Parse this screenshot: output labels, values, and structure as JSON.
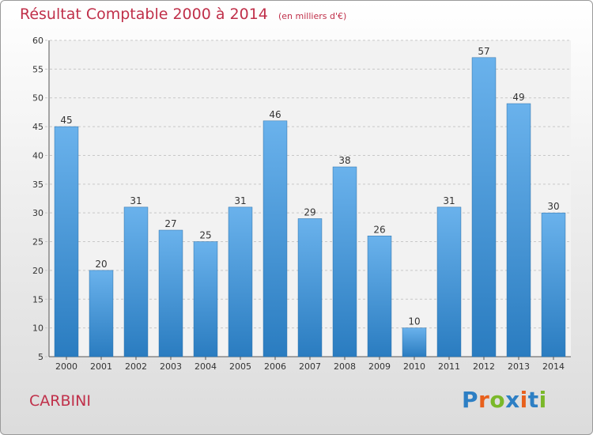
{
  "title": "Résultat Comptable 2000 à 2014",
  "subtitle": "(en milliers d'€)",
  "commune": "CARBINI",
  "logo": {
    "letters": [
      "P",
      "r",
      "o",
      "x",
      "i",
      "t",
      "i"
    ],
    "colors": [
      "#2d7fc4",
      "#e8601c",
      "#7ab829",
      "#2d7fc4",
      "#e8601c",
      "#2d7fc4",
      "#7ab829"
    ]
  },
  "colors": {
    "bar_top": "#6ab2ec",
    "bar_bottom": "#2a7cc0",
    "title": "#c0304a"
  },
  "chart_data": {
    "type": "bar",
    "title": "Résultat Comptable 2000 à 2014",
    "categories": [
      "2000",
      "2001",
      "2002",
      "2003",
      "2004",
      "2005",
      "2006",
      "2007",
      "2008",
      "2009",
      "2010",
      "2011",
      "2012",
      "2013",
      "2014"
    ],
    "values": [
      45,
      20,
      31,
      27,
      25,
      31,
      46,
      29,
      38,
      26,
      10,
      31,
      57,
      49,
      30
    ],
    "ylim": [
      5,
      60
    ],
    "yticks": [
      5,
      10,
      15,
      20,
      25,
      30,
      35,
      40,
      45,
      50,
      55,
      60
    ],
    "grid": true
  }
}
